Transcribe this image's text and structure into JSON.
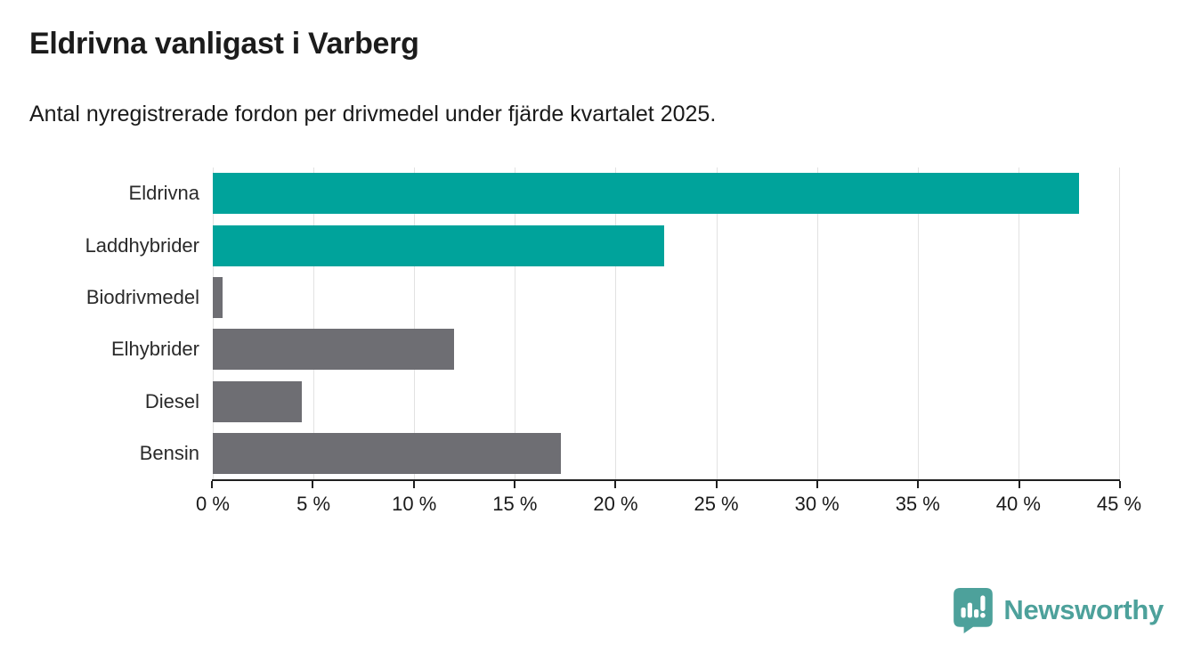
{
  "header": {
    "title": "Eldrivna vanligast i Varberg",
    "subtitle": "Antal nyregistrerade fordon per drivmedel under fjärde kvartalet 2025."
  },
  "chart_data": {
    "type": "bar",
    "orientation": "horizontal",
    "title": "Eldrivna vanligast i Varberg",
    "subtitle": "Antal nyregistrerade fordon per drivmedel under fjärde kvartalet 2025.",
    "categories": [
      "Eldrivna",
      "Laddhybrider",
      "Biodrivmedel",
      "Elhybrider",
      "Diesel",
      "Bensin"
    ],
    "values": [
      43,
      22.4,
      0.5,
      12,
      4.4,
      17.3
    ],
    "bar_colors": [
      "#00a39b",
      "#00a39b",
      "#6e6e73",
      "#6e6e73",
      "#6e6e73",
      "#6e6e73"
    ],
    "xlabel": "",
    "ylabel": "",
    "xlim": [
      0,
      45
    ],
    "xticks": [
      0,
      5,
      10,
      15,
      20,
      25,
      30,
      35,
      40,
      45
    ],
    "xtick_labels": [
      "0 %",
      "5 %",
      "10 %",
      "15 %",
      "20 %",
      "25 %",
      "30 %",
      "35 %",
      "40 %",
      "45 %"
    ],
    "grid": "vertical",
    "legend": false
  },
  "colors": {
    "accent_teal": "#00a39b",
    "bar_gray": "#6e6e73",
    "grid": "#e2e2e2",
    "axis": "#1f1f1f",
    "text": "#1a1a1a",
    "logo_teal": "#4da19b"
  },
  "footer": {
    "brand": "Newsworthy"
  }
}
